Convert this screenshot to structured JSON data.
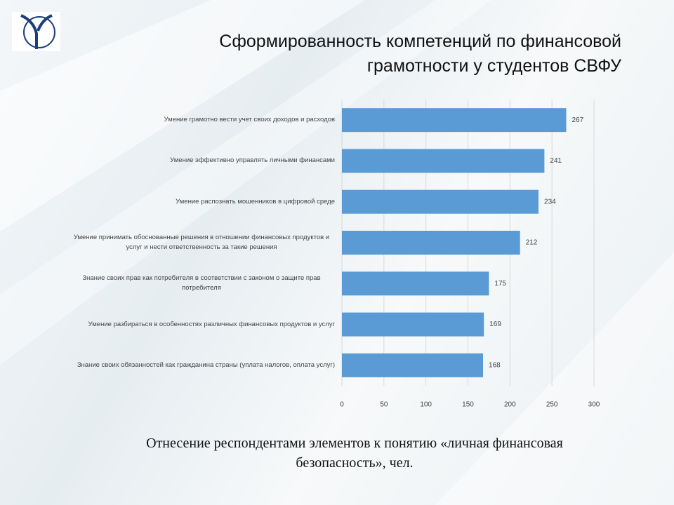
{
  "chart_data": {
    "type": "bar",
    "title": "Сформированность компетенций по финансовой грамотности у студентов СВФУ",
    "caption": "Отнесение респондентами элементов к понятию «личная финансовая безопасность», чел.",
    "categories": [
      "Умение грамотно вести учет своих доходов и расходов",
      "Умение эффективно управлять личными финансами",
      "Умение распознать мошенников в цифровой среде",
      "Умение принимать обоснованные решения в отношении финансовых продуктов и услуг и нести ответственность за такие решения",
      "Знание своих прав как потребителя в соответствии с законом о защите прав потребителя",
      "Умение разбираться в особенностях различных финансовых продуктов и услуг",
      "Знание своих обязанностей как гражданина страны (уплата налогов, оплата услуг)"
    ],
    "values": [
      267,
      241,
      234,
      212,
      175,
      169,
      168
    ],
    "color": "#5b9bd5",
    "xlim": [
      0,
      300
    ],
    "xticks": [
      0,
      50,
      100,
      150,
      200,
      250,
      300
    ],
    "grid": true
  }
}
